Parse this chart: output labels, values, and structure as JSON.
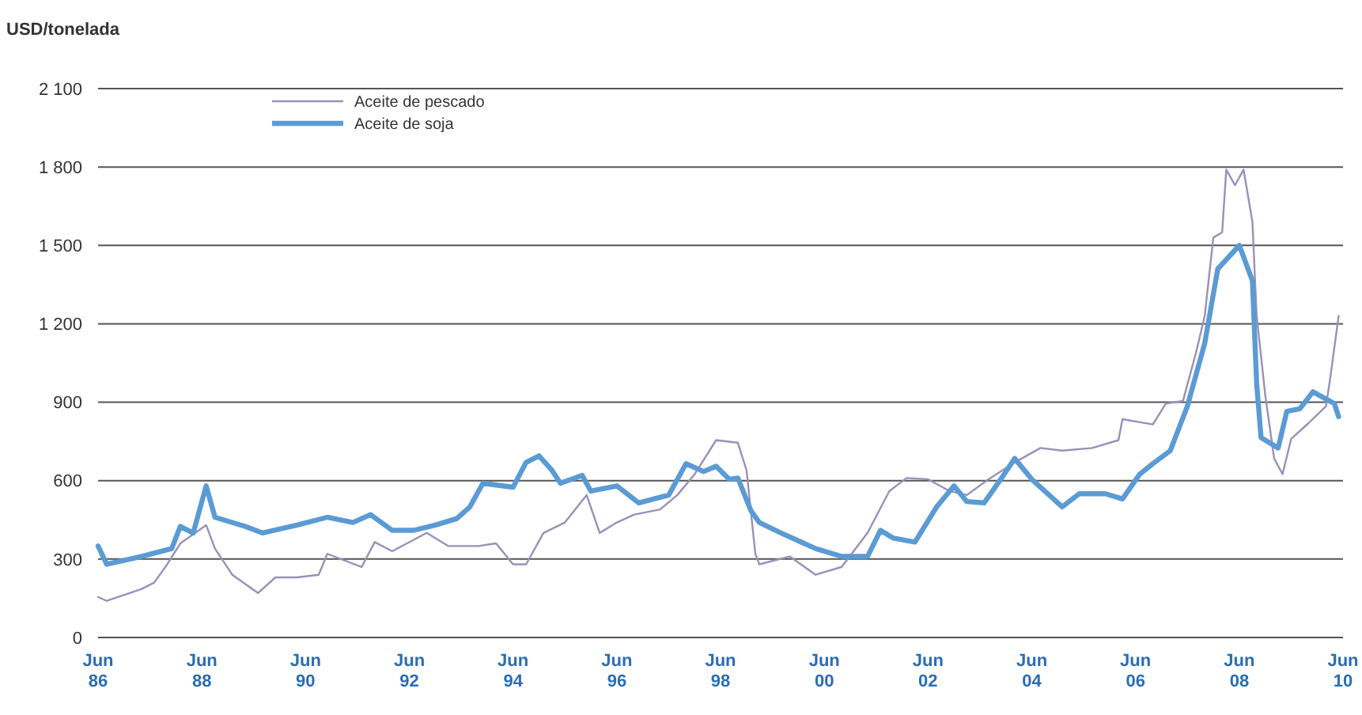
{
  "chart_data": {
    "type": "line",
    "ylabel": "USD/tonelada",
    "xlim": [
      "1986-06",
      "2010-06"
    ],
    "xticks": [
      {
        "value": "1986-06",
        "label": "Jun 86"
      },
      {
        "value": "1988-06",
        "label": "Jun 88"
      },
      {
        "value": "1990-06",
        "label": "Jun 90"
      },
      {
        "value": "1992-06",
        "label": "Jun 92"
      },
      {
        "value": "1994-06",
        "label": "Jun 94"
      },
      {
        "value": "1996-06",
        "label": "Jun 96"
      },
      {
        "value": "1998-06",
        "label": "Jun 98"
      },
      {
        "value": "2000-06",
        "label": "Jun 00"
      },
      {
        "value": "2002-06",
        "label": "Jun 02"
      },
      {
        "value": "2004-06",
        "label": "Jun 04"
      },
      {
        "value": "2006-06",
        "label": "Jun 06"
      },
      {
        "value": "2008-06",
        "label": "Jun 08"
      },
      {
        "value": "2010-06",
        "label": "Jun 10"
      }
    ],
    "ylim": [
      0,
      2100
    ],
    "yticks": [
      0,
      300,
      600,
      900,
      {
        "value": 1200,
        "label": "1 200"
      },
      {
        "value": 1500,
        "label": "1 500"
      },
      {
        "value": 1800,
        "label": "1 800"
      },
      {
        "value": 2100,
        "label": "2 100"
      }
    ],
    "grid": "y",
    "legend": "top left",
    "series": [
      {
        "name": "Aceite de pescado",
        "color": "#9a90b8",
        "x": [
          "1986-06",
          "1986-08",
          "1987-04",
          "1987-07",
          "1987-10",
          "1988-01",
          "1988-07",
          "1988-09",
          "1989-01",
          "1989-07",
          "1989-11",
          "1990-04",
          "1990-09",
          "1990-11",
          "1991-07",
          "1991-10",
          "1992-02",
          "1992-10",
          "1993-03",
          "1993-10",
          "1994-02",
          "1994-06",
          "1994-09",
          "1995-01",
          "1995-06",
          "1995-11",
          "1996-02",
          "1996-06",
          "1996-10",
          "1997-04",
          "1997-08",
          "1997-12",
          "1998-05",
          "1998-10",
          "1998-12",
          "1999-02",
          "1999-03",
          "1999-10",
          "2000-04",
          "2000-10",
          "2001-04",
          "2001-09",
          "2002-01",
          "2002-06",
          "2002-11",
          "2003-03",
          "2003-08",
          "2004-02",
          "2004-08",
          "2005-01",
          "2005-08",
          "2006-02",
          "2006-03",
          "2006-10",
          "2007-01",
          "2007-05",
          "2007-08",
          "2007-10",
          "2007-12",
          "2008-02",
          "2008-03",
          "2008-05",
          "2008-07",
          "2008-09",
          "2008-10",
          "2008-12",
          "2009-02",
          "2009-04",
          "2009-06",
          "2009-10",
          "2010-02",
          "2010-03",
          "2010-05"
        ],
        "values": [
          155,
          140,
          185,
          210,
          280,
          360,
          430,
          340,
          240,
          170,
          230,
          230,
          240,
          320,
          270,
          365,
          330,
          400,
          350,
          350,
          360,
          280,
          280,
          400,
          440,
          545,
          400,
          440,
          470,
          490,
          545,
          625,
          755,
          745,
          640,
          320,
          280,
          310,
          240,
          270,
          400,
          560,
          610,
          605,
          560,
          545,
          605,
          670,
          725,
          715,
          725,
          755,
          835,
          815,
          895,
          905,
          1090,
          1230,
          1530,
          1550,
          1790,
          1730,
          1790,
          1590,
          1230,
          925,
          685,
          625,
          760,
          820,
          885,
          985,
          1230
        ]
      },
      {
        "name": "Aceite de soja",
        "color": "#5b9bd5",
        "x": [
          "1986-06",
          "1986-08",
          "1987-04",
          "1987-11",
          "1988-01",
          "1988-04",
          "1988-07",
          "1988-09",
          "1989-04",
          "1989-08",
          "1990-04",
          "1990-11",
          "1991-05",
          "1991-09",
          "1992-02",
          "1992-07",
          "1992-12",
          "1993-05",
          "1993-08",
          "1993-11",
          "1994-06",
          "1994-09",
          "1994-12",
          "1995-03",
          "1995-05",
          "1995-10",
          "1995-12",
          "1996-06",
          "1996-11",
          "1997-06",
          "1997-10",
          "1998-02",
          "1998-05",
          "1998-08",
          "1998-10",
          "1999-01",
          "1999-03",
          "1999-08",
          "2000-04",
          "2000-10",
          "2001-04",
          "2001-07",
          "2001-10",
          "2002-03",
          "2002-08",
          "2002-12",
          "2003-03",
          "2003-07",
          "2003-11",
          "2004-02",
          "2004-06",
          "2005-01",
          "2005-05",
          "2005-11",
          "2006-03",
          "2006-07",
          "2006-10",
          "2007-02",
          "2007-06",
          "2007-10",
          "2008-01",
          "2008-06",
          "2008-09",
          "2008-10",
          "2008-11",
          "2009-03",
          "2009-05",
          "2009-08",
          "2009-11",
          "2010-04",
          "2010-05"
        ],
        "values": [
          350,
          280,
          310,
          340,
          425,
          400,
          580,
          460,
          425,
          400,
          430,
          460,
          440,
          470,
          410,
          410,
          430,
          455,
          500,
          590,
          575,
          670,
          695,
          640,
          590,
          620,
          560,
          580,
          515,
          545,
          665,
          635,
          655,
          605,
          610,
          485,
          440,
          400,
          340,
          310,
          310,
          410,
          380,
          365,
          500,
          580,
          520,
          515,
          610,
          685,
          605,
          500,
          550,
          550,
          530,
          625,
          665,
          715,
          885,
          1125,
          1410,
          1500,
          1365,
          970,
          765,
          725,
          865,
          875,
          940,
          895,
          845
        ]
      }
    ]
  }
}
